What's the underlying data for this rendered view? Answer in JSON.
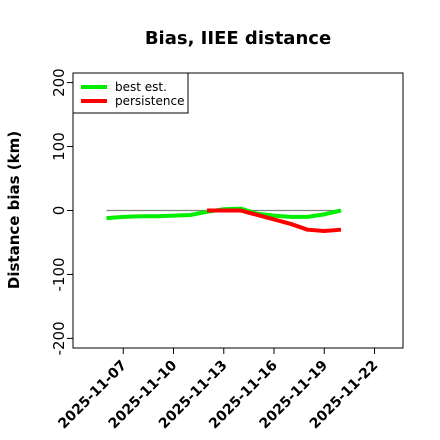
{
  "chart_data": {
    "type": "line",
    "title": "Bias, IIEE distance",
    "xlabel": "",
    "ylabel": "Distance bias (km)",
    "xlim": [
      "2025-11-04",
      "2025-11-23.7"
    ],
    "ylim": [
      -215,
      215
    ],
    "yticks": [
      -200,
      -100,
      0,
      100,
      200
    ],
    "xticks": [
      "2025-11-07",
      "2025-11-10",
      "2025-11-13",
      "2025-11-16",
      "2025-11-19",
      "2025-11-22"
    ],
    "reference_line": {
      "value": 0,
      "color": "#808080"
    },
    "legend_position": "top-left",
    "series": [
      {
        "name": "best est.",
        "color": "#00ee00",
        "x": [
          "2025-11-06",
          "2025-11-07",
          "2025-11-08",
          "2025-11-09",
          "2025-11-10",
          "2025-11-11",
          "2025-11-12",
          "2025-11-13",
          "2025-11-14",
          "2025-11-15",
          "2025-11-16",
          "2025-11-17",
          "2025-11-18",
          "2025-11-19",
          "2025-11-20"
        ],
        "values": [
          -12,
          -10,
          -9,
          -9,
          -8,
          -7,
          -2,
          2,
          3,
          -5,
          -8,
          -10,
          -10,
          -6,
          0
        ]
      },
      {
        "name": "persistence",
        "color": "#ff0000",
        "x": [
          "2025-11-12",
          "2025-11-13",
          "2025-11-14",
          "2025-11-15",
          "2025-11-16",
          "2025-11-17",
          "2025-11-18",
          "2025-11-19",
          "2025-11-20"
        ],
        "values": [
          0,
          0,
          0,
          -7,
          -14,
          -21,
          -30,
          -32,
          -30
        ]
      }
    ]
  }
}
